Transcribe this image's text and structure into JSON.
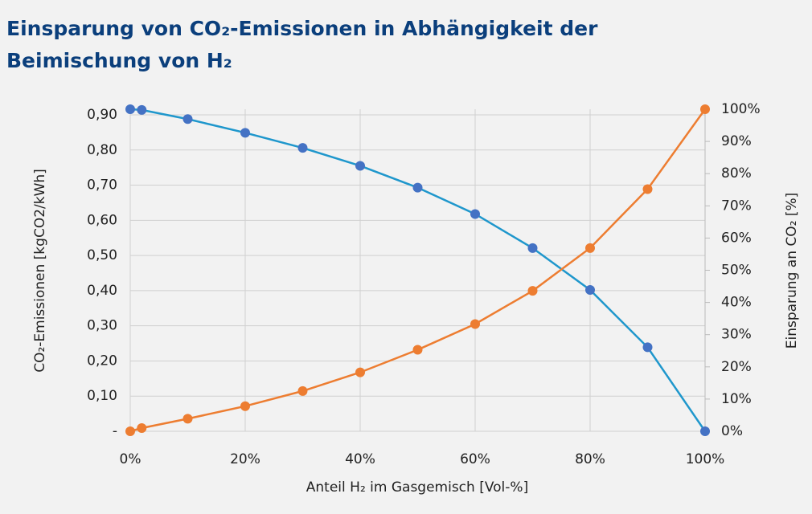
{
  "chart_data": {
    "type": "line",
    "title": "Einsparung von CO₂-Emissionen in Abhängigkeit der",
    "subtitle": "Beimischung von H₂",
    "xlabel": "Anteil H₂ im Gasgemisch [Vol-%]",
    "ylabel": "CO₂-Emissionen [kgCO2/kWh]",
    "y2label": "Einsparung an CO₂ [%]",
    "x": [
      0,
      2,
      10,
      20,
      30,
      40,
      50,
      60,
      70,
      80,
      90,
      100
    ],
    "series": [
      {
        "name": "CO₂-Emissionen",
        "color": "#1f97cc",
        "marker_color": "#4472c4",
        "values": [
          0.916,
          0.914,
          0.888,
          0.849,
          0.806,
          0.755,
          0.693,
          0.618,
          0.521,
          0.402,
          0.239,
          0
        ]
      },
      {
        "name": "Einsparung an CO₂",
        "color": "#ed7d31",
        "marker_color": "#ed7d31",
        "axis": "y2",
        "values": [
          0,
          1,
          3.9,
          7.8,
          12.5,
          18.3,
          25.3,
          33.3,
          43.6,
          56.9,
          75.2,
          100
        ]
      }
    ],
    "xlim": [
      0,
      100
    ],
    "xticks": [
      {
        "value": 0,
        "label": "0%"
      },
      {
        "value": 20,
        "label": "20%"
      },
      {
        "value": 40,
        "label": "40%"
      },
      {
        "value": 60,
        "label": "60%"
      },
      {
        "value": 80,
        "label": "80%"
      },
      {
        "value": 100,
        "label": "100%"
      }
    ],
    "ylim": [
      0,
      0.916
    ],
    "yticks": [
      {
        "value": 0,
        "label": "-"
      },
      {
        "value": 0.1,
        "label": "0,10"
      },
      {
        "value": 0.2,
        "label": "0,20"
      },
      {
        "value": 0.3,
        "label": "0,30"
      },
      {
        "value": 0.4,
        "label": "0,40"
      },
      {
        "value": 0.5,
        "label": "0,50"
      },
      {
        "value": 0.6,
        "label": "0,60"
      },
      {
        "value": 0.7,
        "label": "0,70"
      },
      {
        "value": 0.8,
        "label": "0,80"
      },
      {
        "value": 0.9,
        "label": "0,90"
      }
    ],
    "y2lim": [
      0,
      100
    ],
    "y2ticks": [
      {
        "value": 0,
        "label": "0%"
      },
      {
        "value": 10,
        "label": "10%"
      },
      {
        "value": 20,
        "label": "20%"
      },
      {
        "value": 30,
        "label": "30%"
      },
      {
        "value": 40,
        "label": "40%"
      },
      {
        "value": 50,
        "label": "50%"
      },
      {
        "value": 60,
        "label": "60%"
      },
      {
        "value": 70,
        "label": "70%"
      },
      {
        "value": 80,
        "label": "80%"
      },
      {
        "value": 90,
        "label": "90%"
      },
      {
        "value": 100,
        "label": "100%"
      }
    ],
    "grid": true
  }
}
